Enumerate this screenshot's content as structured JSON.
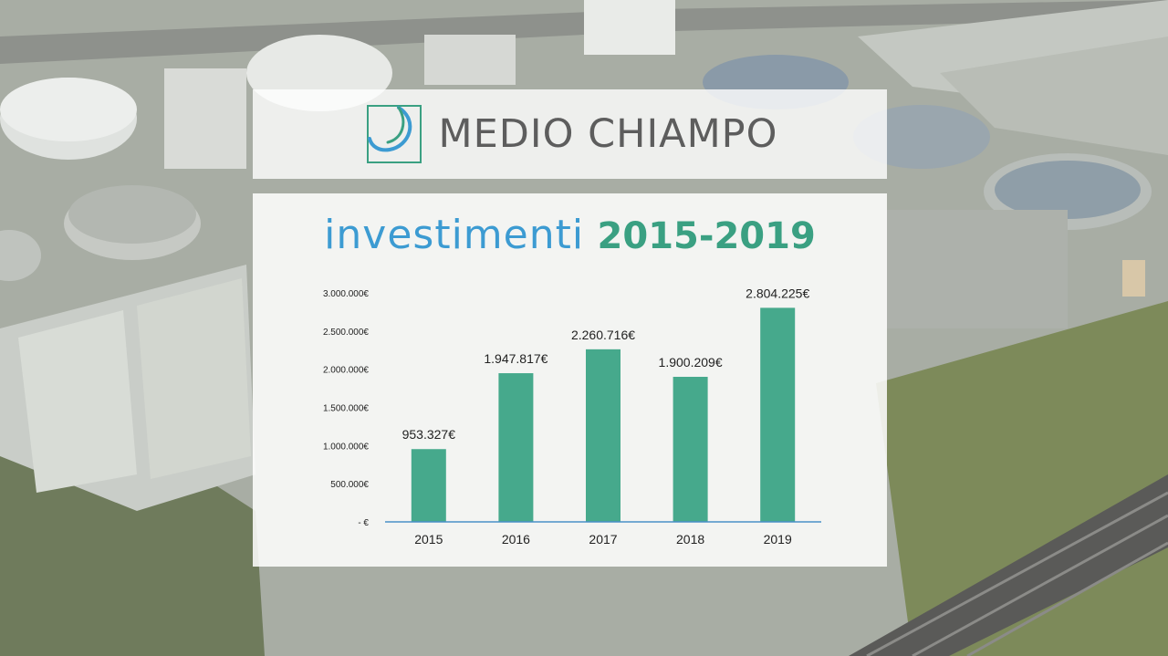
{
  "colors": {
    "heading_word": "#3c9bd2",
    "heading_years": "#3aa082",
    "bar": "#46a98c",
    "axis": "#4a90c8",
    "logo_text": "#5d5d5d",
    "logo_mark_blue": "#3c9bd2",
    "logo_mark_green": "#3aa082"
  },
  "logo": {
    "icon": "medio-chiampo-logo-mark",
    "text": "MEDIO CHIAMPO"
  },
  "heading": {
    "word": "investimenti",
    "years": "2015-2019"
  },
  "chart_data": {
    "type": "bar",
    "categories": [
      "2015",
      "2016",
      "2017",
      "2018",
      "2019"
    ],
    "values": [
      953327,
      1947817,
      2260716,
      1900209,
      2804225
    ],
    "data_labels": [
      "953.327€",
      "1.947.817€",
      "2.260.716€",
      "1.900.209€",
      "2.804.225€"
    ],
    "ylim": [
      0,
      3000000
    ],
    "yticks": [
      0,
      500000,
      1000000,
      1500000,
      2000000,
      2500000,
      3000000
    ],
    "ytick_labels": [
      "- €",
      "500.000€",
      "1.000.000€",
      "1.500.000€",
      "2.000.000€",
      "2.500.000€",
      "3.000.000€"
    ],
    "grid": false,
    "legend": "none"
  }
}
